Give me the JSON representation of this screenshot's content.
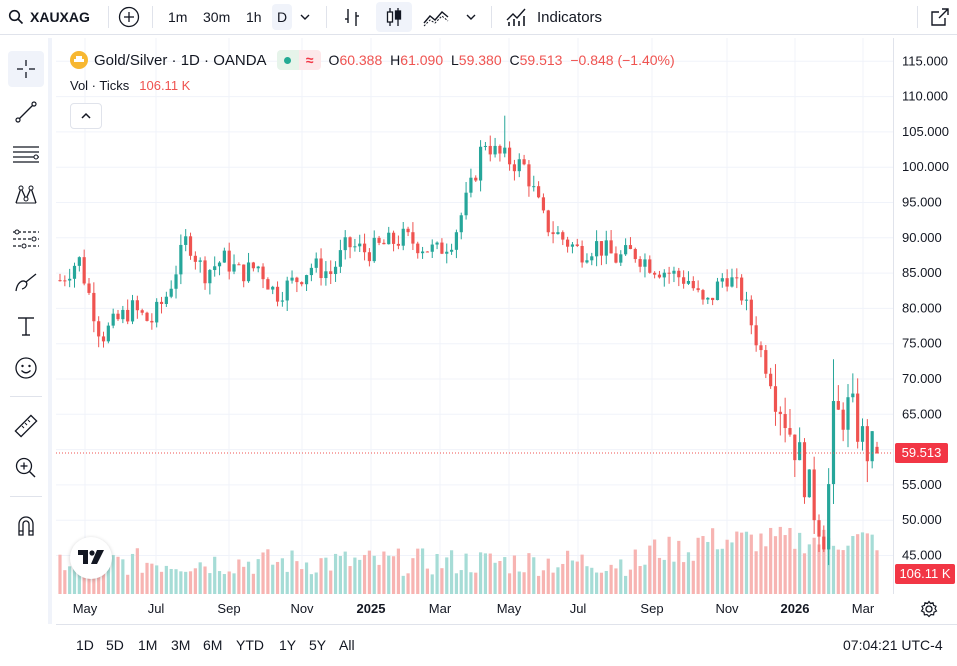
{
  "header": {
    "symbol": "XAUXAG",
    "intervals": [
      "1m",
      "30m",
      "1h",
      "D"
    ],
    "indicators_label": "Indicators"
  },
  "legend": {
    "title": "Gold/Silver · 1D · OANDA",
    "o_label": "O",
    "o": "60.388",
    "h_label": "H",
    "h": "61.090",
    "l_label": "L",
    "l": "59.380",
    "c_label": "C",
    "c": "59.513",
    "change": "−0.848 (−1.40%)",
    "vol_label": "Vol · Ticks",
    "vol": "106.11 K"
  },
  "price_axis": {
    "ticks": [
      "115.000",
      "110.000",
      "105.000",
      "100.000",
      "95.000",
      "90.000",
      "85.000",
      "80.000",
      "75.000",
      "70.000",
      "65.000",
      "60.000",
      "55.000",
      "50.000",
      "45.000"
    ],
    "last_price_label": "59.513",
    "last_volume_label": "106.11 K"
  },
  "time_axis": {
    "labels": [
      "May",
      "Jul",
      "Sep",
      "Nov",
      "2025",
      "Mar",
      "May",
      "Jul",
      "Sep",
      "Nov",
      "2026",
      "Mar"
    ]
  },
  "bottom": {
    "ranges": [
      "1D",
      "5D",
      "1M",
      "3M",
      "6M",
      "YTD",
      "1Y",
      "5Y",
      "All"
    ],
    "clock": "07:04:21 UTC-4"
  },
  "colors": {
    "up": "#26a69a",
    "down": "#ef5350",
    "accent": "#2962ff"
  },
  "chart_data": {
    "type": "candlestick",
    "title": "Gold/Silver · 1D · OANDA",
    "x": [
      "2024-04-15",
      "2024-05-01",
      "2024-05-20",
      "2024-06-01",
      "2024-06-15",
      "2024-07-01",
      "2024-07-15",
      "2024-08-01",
      "2024-08-15",
      "2024-09-01",
      "2024-09-15",
      "2024-10-01",
      "2024-10-15",
      "2024-11-01",
      "2024-11-15",
      "2024-12-01",
      "2024-12-15",
      "2025-01-01",
      "2025-01-15",
      "2025-02-01",
      "2025-02-15",
      "2025-03-01",
      "2025-03-15",
      "2025-04-01",
      "2025-04-10",
      "2025-04-20",
      "2025-05-01",
      "2025-05-15",
      "2025-06-01",
      "2025-06-15",
      "2025-07-01",
      "2025-07-15",
      "2025-08-01",
      "2025-08-15",
      "2025-09-01",
      "2025-09-15",
      "2025-10-01",
      "2025-10-15",
      "2025-11-01",
      "2025-11-15",
      "2025-12-01",
      "2025-12-15",
      "2026-01-01",
      "2026-01-15",
      "2026-01-25",
      "2026-02-01",
      "2026-02-15",
      "2026-03-01",
      "2026-03-10"
    ],
    "close": [
      84,
      87,
      76,
      78,
      80,
      78,
      82,
      90,
      85,
      87,
      85,
      86,
      82,
      84,
      86,
      85,
      89,
      88,
      89,
      90,
      89,
      88,
      90,
      98,
      104,
      102,
      101,
      100,
      92,
      90,
      88,
      89,
      87,
      88,
      86,
      85,
      84,
      80,
      85,
      82,
      74,
      68,
      60,
      52,
      48,
      64,
      66,
      60,
      59.513
    ],
    "ylim": [
      42,
      115
    ]
  }
}
